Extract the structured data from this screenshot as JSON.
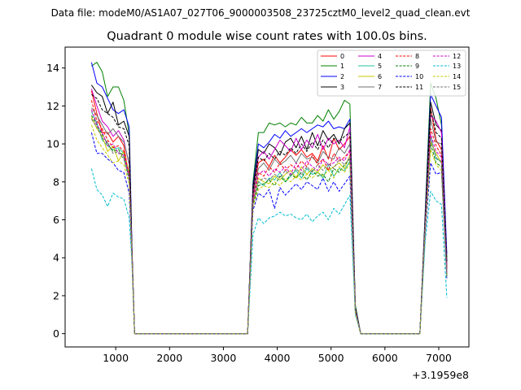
{
  "chart_data": {
    "type": "line",
    "suptitle": "Data file: modeM0/AS1A07_027T06_9000003508_23725cztM0_level2_quad_clean.evt",
    "title": "Quadrant 0 module wise count rates with 100.0s bins.",
    "xlabel": "",
    "ylabel": "",
    "x_offset_label": "+3.1959e8",
    "xlim": [
      60,
      7560
    ],
    "ylim": [
      -0.7,
      15.1
    ],
    "xticks": [
      1000,
      2000,
      3000,
      4000,
      5000,
      6000,
      7000
    ],
    "yticks": [
      0,
      2,
      4,
      6,
      8,
      10,
      12,
      14
    ],
    "legend_position": "top-right",
    "grid": false,
    "x": [
      550,
      650,
      750,
      850,
      950,
      1050,
      1150,
      1250,
      1300,
      1350,
      1450,
      1550,
      1650,
      1750,
      1850,
      1950,
      2050,
      2150,
      2250,
      2350,
      2450,
      2550,
      2650,
      2750,
      2850,
      2950,
      3050,
      3150,
      3250,
      3350,
      3450,
      3550,
      3650,
      3750,
      3850,
      3950,
      4050,
      4150,
      4250,
      4350,
      4450,
      4550,
      4650,
      4750,
      4850,
      4950,
      5050,
      5150,
      5250,
      5350,
      5450,
      5550,
      5650,
      5750,
      5850,
      5950,
      6050,
      6150,
      6250,
      6350,
      6450,
      6550,
      6650,
      6750,
      6850,
      6950,
      7050,
      7150
    ],
    "series": [
      {
        "name": "0",
        "color": "#ff0000",
        "dash": "solid",
        "values": [
          12.8,
          11.6,
          10.6,
          10.6,
          10.1,
          10.4,
          9.9,
          8.2,
          4.5,
          0,
          0,
          0,
          0,
          0,
          0,
          0,
          0,
          0,
          0,
          0,
          0,
          0,
          0,
          0,
          0,
          0,
          0,
          0,
          0,
          0,
          0,
          7.5,
          9.0,
          9.2,
          8.8,
          9.4,
          9.0,
          9.3,
          9.7,
          9.4,
          9.7,
          9.3,
          9.5,
          9.1,
          9.9,
          9.2,
          10.3,
          9.7,
          10.0,
          10.4,
          1.3,
          0,
          0,
          0,
          0,
          0,
          0,
          0,
          0,
          0,
          0,
          0,
          0,
          6.0,
          11.9,
          10.2,
          9.7,
          3.5
        ]
      },
      {
        "name": "1",
        "color": "#008000",
        "dash": "solid",
        "values": [
          14.1,
          14.3,
          13.8,
          12.5,
          13.0,
          13.0,
          12.3,
          10.5,
          4.5,
          0,
          0,
          0,
          0,
          0,
          0,
          0,
          0,
          0,
          0,
          0,
          0,
          0,
          0,
          0,
          0,
          0,
          0,
          0,
          0,
          0,
          0,
          8.0,
          10.6,
          10.6,
          11.1,
          11.0,
          11.1,
          10.9,
          11.1,
          11.0,
          11.4,
          11.1,
          11.1,
          11.5,
          11.2,
          11.8,
          11.3,
          11.7,
          12.3,
          12.1,
          1.5,
          0,
          0,
          0,
          0,
          0,
          0,
          0,
          0,
          0,
          0,
          0,
          0,
          6.5,
          13.2,
          12.4,
          11.0,
          4.0
        ]
      },
      {
        "name": "2",
        "color": "#0000ff",
        "dash": "solid",
        "values": [
          14.3,
          13.2,
          13.0,
          12.4,
          11.8,
          11.6,
          11.8,
          10.9,
          4.8,
          0,
          0,
          0,
          0,
          0,
          0,
          0,
          0,
          0,
          0,
          0,
          0,
          0,
          0,
          0,
          0,
          0,
          0,
          0,
          0,
          0,
          0,
          7.8,
          10.0,
          9.8,
          10.1,
          10.5,
          10.3,
          10.7,
          10.4,
          10.6,
          10.8,
          10.6,
          10.8,
          11.0,
          10.9,
          11.2,
          10.8,
          10.9,
          10.8,
          11.3,
          1.4,
          0,
          0,
          0,
          0,
          0,
          0,
          0,
          0,
          0,
          0,
          0,
          0,
          6.3,
          12.6,
          12.0,
          11.4,
          4.2
        ]
      },
      {
        "name": "3",
        "color": "#000000",
        "dash": "solid",
        "values": [
          13.1,
          12.7,
          12.5,
          11.6,
          12.2,
          11.0,
          11.2,
          10.4,
          4.6,
          0,
          0,
          0,
          0,
          0,
          0,
          0,
          0,
          0,
          0,
          0,
          0,
          0,
          0,
          0,
          0,
          0,
          0,
          0,
          0,
          0,
          0,
          7.7,
          9.7,
          9.5,
          10.0,
          9.8,
          9.4,
          10.1,
          10.3,
          9.8,
          10.4,
          9.7,
          10.6,
          9.9,
          10.7,
          10.2,
          10.5,
          10.0,
          10.8,
          11.1,
          1.4,
          0,
          0,
          0,
          0,
          0,
          0,
          0,
          0,
          0,
          0,
          0,
          0,
          6.2,
          12.2,
          11.0,
          10.7,
          3.8
        ]
      },
      {
        "name": "4",
        "color": "#cc00cc",
        "dash": "solid",
        "values": [
          12.9,
          12.0,
          11.2,
          10.9,
          10.4,
          10.7,
          10.2,
          8.9,
          4.4,
          0,
          0,
          0,
          0,
          0,
          0,
          0,
          0,
          0,
          0,
          0,
          0,
          0,
          0,
          0,
          0,
          0,
          0,
          0,
          0,
          0,
          0,
          7.4,
          9.3,
          9.6,
          9.2,
          9.7,
          10.2,
          9.9,
          9.6,
          10.3,
          9.7,
          10.2,
          9.8,
          10.5,
          9.7,
          10.3,
          10.0,
          10.2,
          9.8,
          10.9,
          1.3,
          0,
          0,
          0,
          0,
          0,
          0,
          0,
          0,
          0,
          0,
          0,
          0,
          6.0,
          11.5,
          11.2,
          10.6,
          3.6
        ]
      },
      {
        "name": "5",
        "color": "#20c0a0",
        "dash": "solid",
        "values": [
          11.7,
          11.1,
          10.2,
          9.9,
          9.7,
          9.8,
          9.5,
          8.3,
          4.3,
          0,
          0,
          0,
          0,
          0,
          0,
          0,
          0,
          0,
          0,
          0,
          0,
          0,
          0,
          0,
          0,
          0,
          0,
          0,
          0,
          0,
          0,
          7.0,
          8.0,
          7.8,
          8.2,
          8.1,
          8.5,
          8.0,
          8.3,
          8.6,
          8.2,
          8.7,
          8.4,
          8.5,
          8.2,
          8.9,
          8.3,
          8.7,
          8.6,
          9.1,
          1.2,
          0,
          0,
          0,
          0,
          0,
          0,
          0,
          0,
          0,
          0,
          0,
          0,
          5.8,
          10.4,
          9.2,
          9.1,
          3.2
        ]
      },
      {
        "name": "6",
        "color": "#c8c800",
        "dash": "solid",
        "values": [
          11.4,
          10.8,
          10.4,
          9.6,
          9.9,
          9.1,
          9.6,
          8.5,
          4.3,
          0,
          0,
          0,
          0,
          0,
          0,
          0,
          0,
          0,
          0,
          0,
          0,
          0,
          0,
          0,
          0,
          0,
          0,
          0,
          0,
          0,
          0,
          6.9,
          8.2,
          8.0,
          7.9,
          8.3,
          8.1,
          8.4,
          8.6,
          8.2,
          8.8,
          8.4,
          8.7,
          8.5,
          8.9,
          8.6,
          8.8,
          9.0,
          8.7,
          9.4,
          1.2,
          0,
          0,
          0,
          0,
          0,
          0,
          0,
          0,
          0,
          0,
          0,
          0,
          5.7,
          10.1,
          9.5,
          9.0,
          3.1
        ]
      },
      {
        "name": "7",
        "color": "#707070",
        "dash": "solid",
        "values": [
          11.9,
          11.5,
          11.0,
          10.5,
          10.8,
          10.4,
          10.1,
          9.0,
          4.4,
          0,
          0,
          0,
          0,
          0,
          0,
          0,
          0,
          0,
          0,
          0,
          0,
          0,
          0,
          0,
          0,
          0,
          0,
          0,
          0,
          0,
          0,
          7.2,
          8.7,
          9.0,
          8.6,
          9.2,
          8.9,
          9.1,
          9.4,
          9.0,
          9.5,
          9.2,
          9.3,
          9.0,
          9.6,
          9.3,
          9.2,
          9.8,
          9.5,
          10.0,
          1.3,
          0,
          0,
          0,
          0,
          0,
          0,
          0,
          0,
          0,
          0,
          0,
          0,
          5.9,
          11.3,
          10.1,
          10.0,
          3.4
        ]
      },
      {
        "name": "8",
        "color": "#ff0000",
        "dash": "dashed",
        "values": [
          12.3,
          11.2,
          10.8,
          10.2,
          9.8,
          9.9,
          9.6,
          8.4,
          4.3,
          0,
          0,
          0,
          0,
          0,
          0,
          0,
          0,
          0,
          0,
          0,
          0,
          0,
          0,
          0,
          0,
          0,
          0,
          0,
          0,
          0,
          0,
          7.1,
          8.5,
          8.3,
          8.8,
          8.5,
          9.0,
          8.6,
          8.9,
          8.7,
          9.1,
          8.8,
          9.4,
          8.9,
          9.2,
          8.6,
          9.5,
          9.1,
          9.3,
          9.6,
          1.2,
          0,
          0,
          0,
          0,
          0,
          0,
          0,
          0,
          0,
          0,
          0,
          0,
          5.8,
          10.8,
          9.9,
          9.4,
          3.3
        ]
      },
      {
        "name": "9",
        "color": "#008000",
        "dash": "dashed",
        "values": [
          11.5,
          11.0,
          10.5,
          10.0,
          9.6,
          9.7,
          9.3,
          8.1,
          4.2,
          0,
          0,
          0,
          0,
          0,
          0,
          0,
          0,
          0,
          0,
          0,
          0,
          0,
          0,
          0,
          0,
          0,
          0,
          0,
          0,
          0,
          0,
          6.8,
          7.8,
          7.9,
          8.1,
          7.8,
          8.3,
          8.0,
          8.4,
          8.2,
          8.5,
          8.1,
          8.6,
          8.3,
          8.4,
          8.0,
          8.7,
          8.5,
          8.9,
          9.2,
          1.2,
          0,
          0,
          0,
          0,
          0,
          0,
          0,
          0,
          0,
          0,
          0,
          0,
          5.6,
          10.0,
          9.0,
          8.8,
          3.0
        ]
      },
      {
        "name": "10",
        "color": "#0000ff",
        "dash": "dashed",
        "values": [
          10.6,
          9.5,
          9.5,
          9.2,
          9.0,
          8.6,
          8.5,
          7.4,
          4.0,
          0,
          0,
          0,
          0,
          0,
          0,
          0,
          0,
          0,
          0,
          0,
          0,
          0,
          0,
          0,
          0,
          0,
          0,
          0,
          0,
          0,
          0,
          6.5,
          7.4,
          7.2,
          7.6,
          6.6,
          7.7,
          7.3,
          7.6,
          7.9,
          7.6,
          8.0,
          7.8,
          7.6,
          8.2,
          7.5,
          8.0,
          7.5,
          7.9,
          8.3,
          1.1,
          0,
          0,
          0,
          0,
          0,
          0,
          0,
          0,
          0,
          0,
          0,
          0,
          5.3,
          9.0,
          8.4,
          8.5,
          2.9
        ]
      },
      {
        "name": "11",
        "color": "#000000",
        "dash": "dashed",
        "values": [
          12.6,
          12.4,
          11.8,
          11.6,
          11.4,
          10.9,
          10.8,
          9.9,
          4.5,
          0,
          0,
          0,
          0,
          0,
          0,
          0,
          0,
          0,
          0,
          0,
          0,
          0,
          0,
          0,
          0,
          0,
          0,
          0,
          0,
          0,
          0,
          7.4,
          9.3,
          9.1,
          9.5,
          9.2,
          9.6,
          9.4,
          9.8,
          9.5,
          10.0,
          9.6,
          10.1,
          9.7,
          10.2,
          9.8,
          10.3,
          10.1,
          10.4,
          10.6,
          1.3,
          0,
          0,
          0,
          0,
          0,
          0,
          0,
          0,
          0,
          0,
          0,
          0,
          6.1,
          11.8,
          10.6,
          10.3,
          3.7
        ]
      },
      {
        "name": "12",
        "color": "#cc00cc",
        "dash": "dashed",
        "values": [
          11.8,
          11.0,
          10.6,
          9.9,
          10.0,
          9.5,
          9.4,
          8.3,
          4.3,
          0,
          0,
          0,
          0,
          0,
          0,
          0,
          0,
          0,
          0,
          0,
          0,
          0,
          0,
          0,
          0,
          0,
          0,
          0,
          0,
          0,
          0,
          7.0,
          8.4,
          8.6,
          8.3,
          8.7,
          8.5,
          8.8,
          8.4,
          9.0,
          8.6,
          9.1,
          8.8,
          8.6,
          9.2,
          8.9,
          9.0,
          9.3,
          9.1,
          9.7,
          1.2,
          0,
          0,
          0,
          0,
          0,
          0,
          0,
          0,
          0,
          0,
          0,
          0,
          5.8,
          10.5,
          9.6,
          9.3,
          3.2
        ]
      },
      {
        "name": "13",
        "color": "#00bcd0",
        "dash": "dashed",
        "values": [
          8.7,
          7.6,
          7.3,
          6.7,
          7.4,
          7.2,
          7.1,
          6.1,
          3.8,
          0,
          0,
          0,
          0,
          0,
          0,
          0,
          0,
          0,
          0,
          0,
          0,
          0,
          0,
          0,
          0,
          0,
          0,
          0,
          0,
          0,
          0,
          5.2,
          6.1,
          5.8,
          6.1,
          6.2,
          6.4,
          6.2,
          6.3,
          6.1,
          6.0,
          6.3,
          5.9,
          6.2,
          6.4,
          6.0,
          6.6,
          6.3,
          6.8,
          7.3,
          1.0,
          0,
          0,
          0,
          0,
          0,
          0,
          0,
          0,
          0,
          0,
          0,
          0,
          4.9,
          7.5,
          7.0,
          6.8,
          1.9
        ]
      },
      {
        "name": "14",
        "color": "#c8c800",
        "dash": "dashed",
        "values": [
          11.0,
          10.2,
          9.8,
          9.4,
          9.0,
          9.1,
          8.9,
          7.9,
          4.1,
          0,
          0,
          0,
          0,
          0,
          0,
          0,
          0,
          0,
          0,
          0,
          0,
          0,
          0,
          0,
          0,
          0,
          0,
          0,
          0,
          0,
          0,
          6.7,
          7.6,
          7.8,
          7.7,
          8.0,
          7.8,
          8.2,
          8.0,
          8.3,
          8.1,
          8.4,
          8.2,
          8.5,
          8.3,
          8.6,
          8.2,
          8.8,
          8.5,
          9.0,
          1.1,
          0,
          0,
          0,
          0,
          0,
          0,
          0,
          0,
          0,
          0,
          0,
          0,
          5.5,
          9.7,
          8.9,
          8.6,
          3.0
        ]
      },
      {
        "name": "15",
        "color": "#707070",
        "dash": "dashed",
        "values": [
          11.3,
          10.9,
          10.3,
          10.1,
          9.5,
          9.6,
          9.2,
          8.2,
          4.2,
          0,
          0,
          0,
          0,
          0,
          0,
          0,
          0,
          0,
          0,
          0,
          0,
          0,
          0,
          0,
          0,
          0,
          0,
          0,
          0,
          0,
          0,
          6.9,
          8.0,
          8.2,
          8.1,
          8.4,
          8.2,
          8.6,
          8.3,
          8.7,
          8.4,
          8.8,
          8.5,
          8.9,
          8.6,
          9.0,
          8.7,
          9.2,
          8.9,
          9.3,
          1.2,
          0,
          0,
          0,
          0,
          0,
          0,
          0,
          0,
          0,
          0,
          0,
          0,
          5.7,
          10.3,
          9.3,
          9.0,
          3.1
        ]
      }
    ]
  }
}
